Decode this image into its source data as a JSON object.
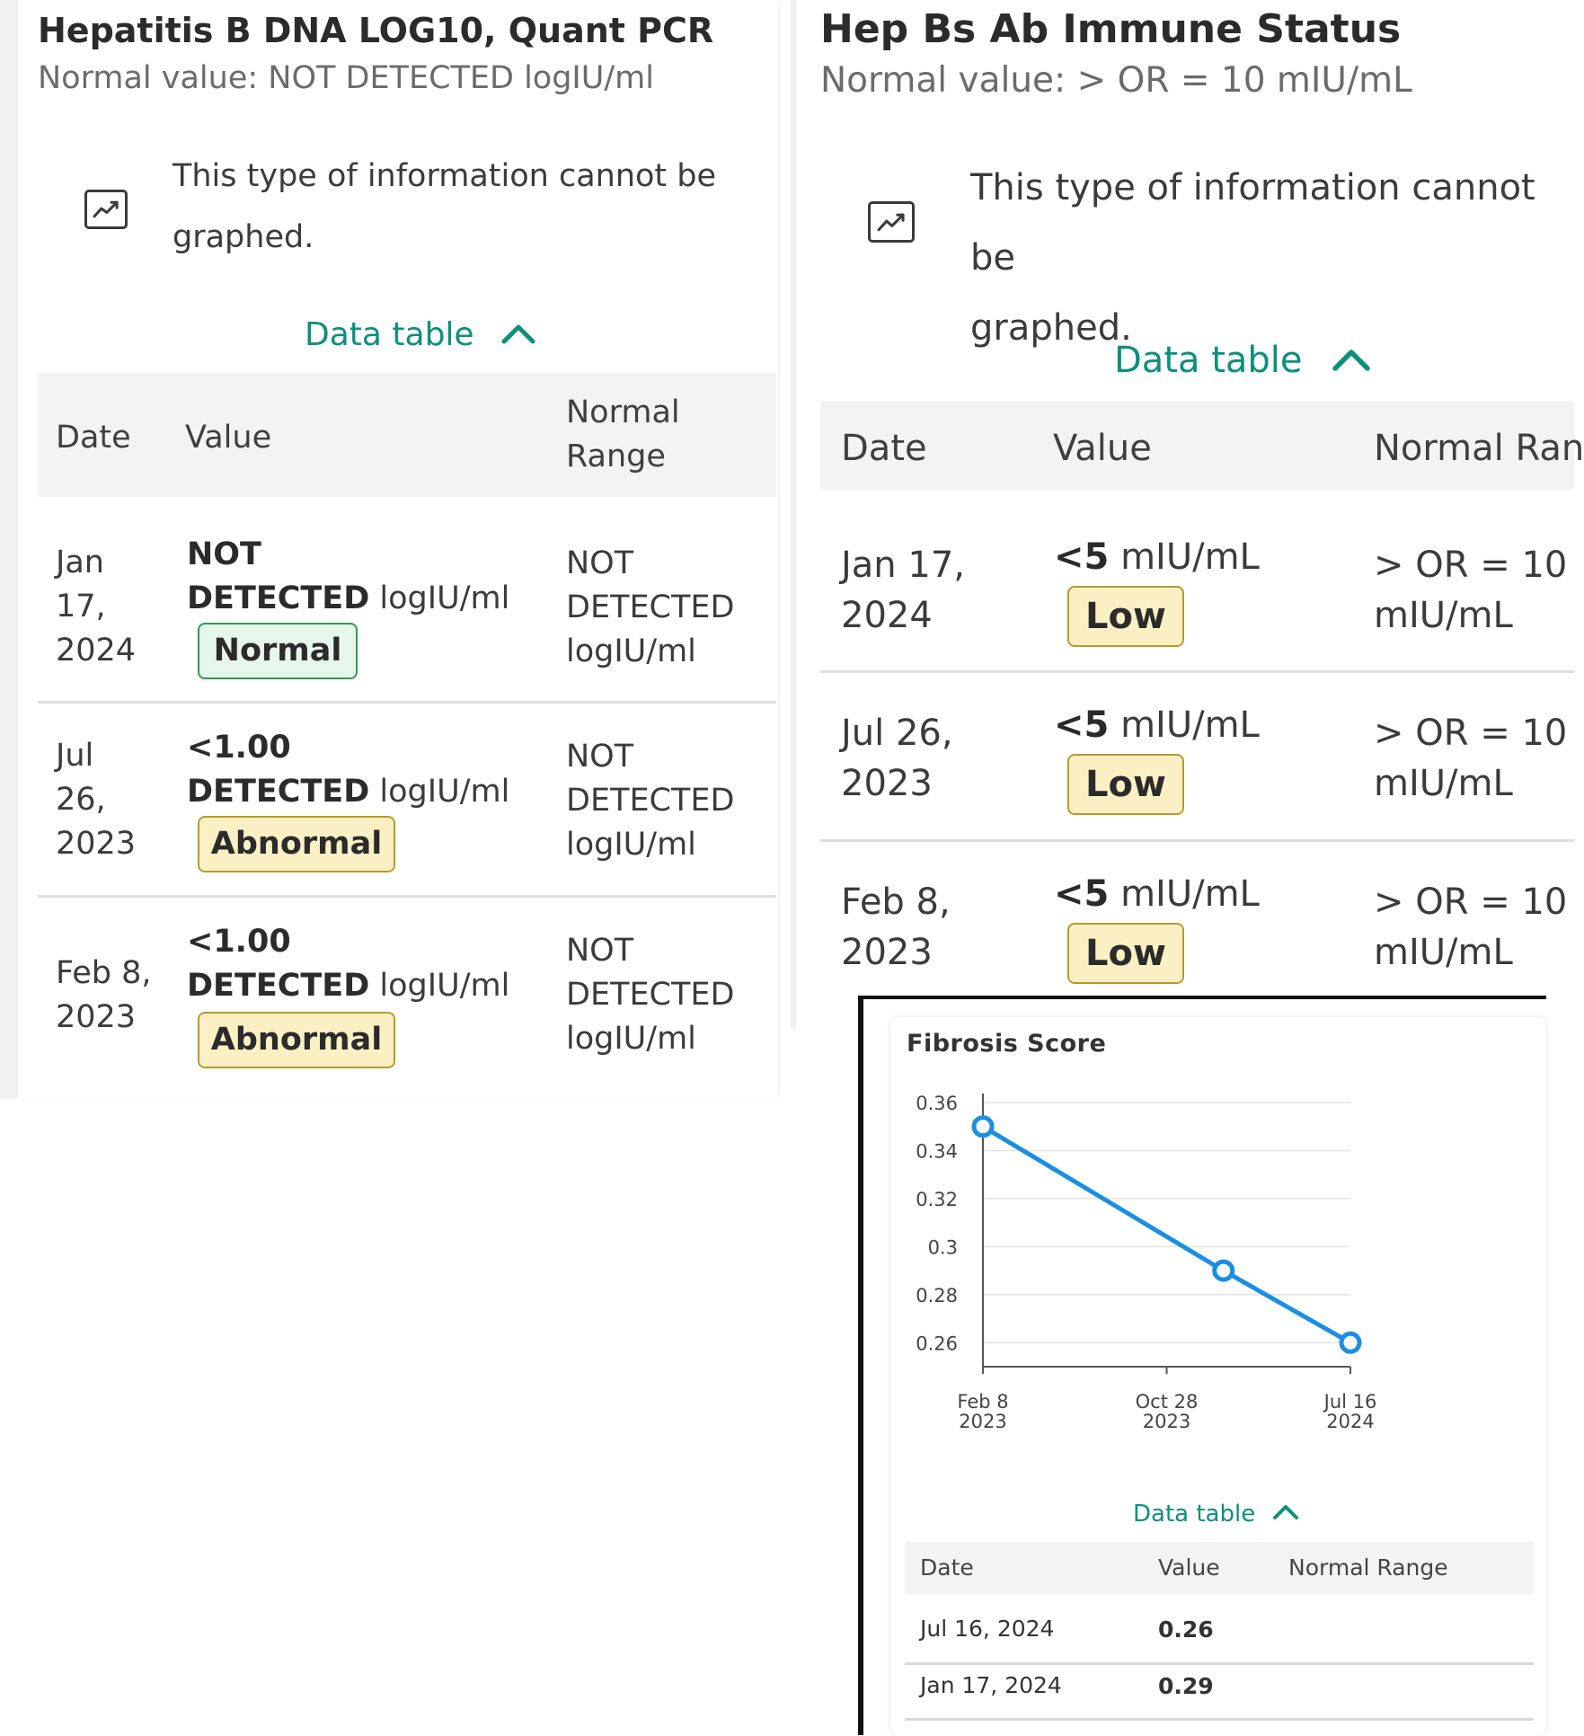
{
  "left_card": {
    "title": "Hepatitis B DNA LOG10, Quant PCR",
    "normal_value": "Normal value: NOT DETECTED logIU/ml",
    "icon": "chart-line-icon",
    "no_graph_line1": "This type of information cannot be",
    "no_graph_line2": "graphed.",
    "toggle_label": "Data table",
    "headers": {
      "date": "Date",
      "value": "Value",
      "normal_range_1": "Normal",
      "normal_range_2": "Range"
    },
    "rows": [
      {
        "date_1": "Jan",
        "date_2": "17,",
        "date_3": "2024",
        "value_line1": "NOT",
        "value_bold": "DETECTED",
        "unit": "logIU/ml",
        "flag": "Normal",
        "range_1": "NOT",
        "range_2": "DETECTED",
        "range_3": "logIU/ml"
      },
      {
        "date_1": "Jul",
        "date_2": "26,",
        "date_3": "2023",
        "value_line1": "<1.00",
        "value_bold": "DETECTED",
        "unit": "logIU/ml",
        "flag": "Abnormal",
        "range_1": "NOT",
        "range_2": "DETECTED",
        "range_3": "logIU/ml"
      },
      {
        "date_1": "Feb 8,",
        "date_2": "2023",
        "value_line1": "<1.00",
        "value_bold": "DETECTED",
        "unit": "logIU/ml",
        "flag": "Abnormal",
        "range_1": "NOT",
        "range_2": "DETECTED",
        "range_3": "logIU/ml"
      }
    ]
  },
  "right_card": {
    "title": "Hep Bs Ab Immune Status",
    "normal_value": "Normal value: > OR = 10 mIU/mL",
    "icon": "chart-line-icon",
    "no_graph_line1": "This type of information cannot be",
    "no_graph_line2": "graphed.",
    "toggle_label": "Data table",
    "headers": {
      "date": "Date",
      "value": "Value",
      "normal_range": "Normal Ran"
    },
    "rows": [
      {
        "date_1": "Jan 17,",
        "date_2": "2024",
        "value": "<5",
        "unit": "mIU/mL",
        "flag": "Low",
        "range_1": "> OR = 10",
        "range_2": "mIU/mL"
      },
      {
        "date_1": "Jul 26,",
        "date_2": "2023",
        "value": "<5",
        "unit": "mIU/mL",
        "flag": "Low",
        "range_1": "> OR = 10",
        "range_2": "mIU/mL"
      },
      {
        "date_1": "Feb 8,",
        "date_2": "2023",
        "value": "<5",
        "unit": "mIU/mL",
        "flag": "Low",
        "range_1": "> OR = 10",
        "range_2": "mIU/mL"
      }
    ]
  },
  "fibrosis": {
    "title": "Fibrosis Score",
    "toggle_label": "Data table",
    "headers": {
      "date": "Date",
      "value": "Value",
      "normal_range": "Normal Range"
    },
    "rows": [
      {
        "date": "Jul 16, 2024",
        "value": "0.26"
      },
      {
        "date": "Jan 17, 2024",
        "value": "0.29"
      }
    ]
  },
  "chart_data": {
    "type": "line",
    "title": "Fibrosis Score",
    "x": [
      "2023-02-08",
      "2024-01-17",
      "2024-07-16"
    ],
    "series": [
      {
        "values": [
          0.35,
          0.29,
          0.26
        ]
      }
    ],
    "xticks": [
      {
        "date": "2023-02-08",
        "label_1": "Feb 8",
        "label_2": "2023"
      },
      {
        "date": "2023-10-28",
        "label_1": "Oct 28",
        "label_2": "2023"
      },
      {
        "date": "2024-07-16",
        "label_1": "Jul 16",
        "label_2": "2024"
      }
    ],
    "yticks": [
      "0.36",
      "0.34",
      "0.32",
      "0.3",
      "0.28",
      "0.26"
    ],
    "ylim": [
      0.25,
      0.36
    ],
    "xlim": [
      "2023-02-08",
      "2024-07-16"
    ],
    "grid": true,
    "color": "#1a8fe3"
  }
}
